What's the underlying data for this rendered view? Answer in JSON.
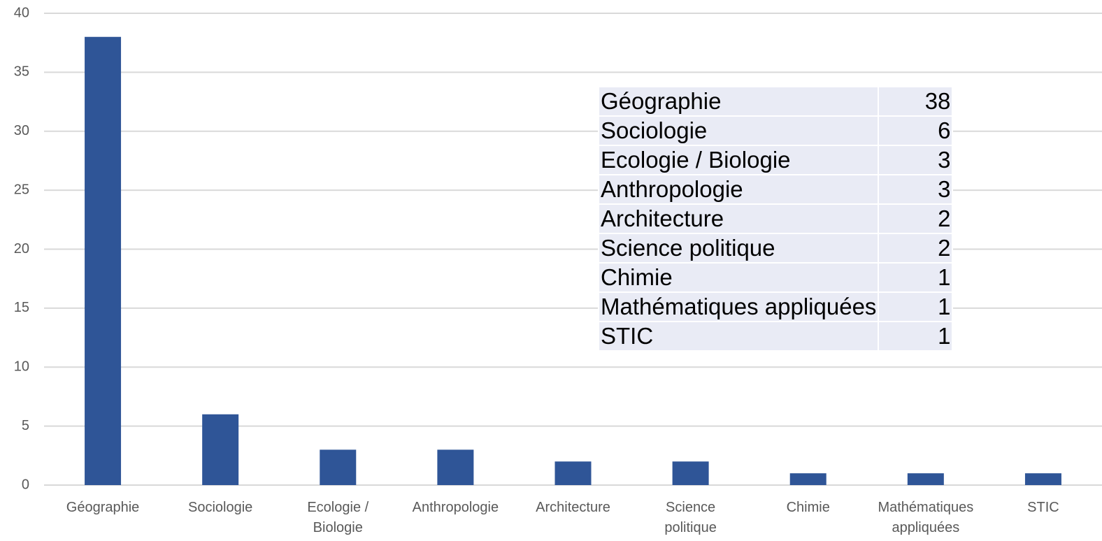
{
  "chart_data": {
    "type": "bar",
    "categories": [
      "Géographie",
      "Sociologie",
      "Ecologie / Biologie",
      "Anthropologie",
      "Architecture",
      "Science politique",
      "Chimie",
      "Mathématiques appliquées",
      "STIC"
    ],
    "values": [
      38,
      6,
      3,
      3,
      2,
      2,
      1,
      1,
      1
    ],
    "color": "#2f5597",
    "ylim": [
      0,
      40
    ],
    "yticks": [
      0,
      5,
      10,
      15,
      20,
      25,
      30,
      35,
      40
    ],
    "grid": true
  }
}
